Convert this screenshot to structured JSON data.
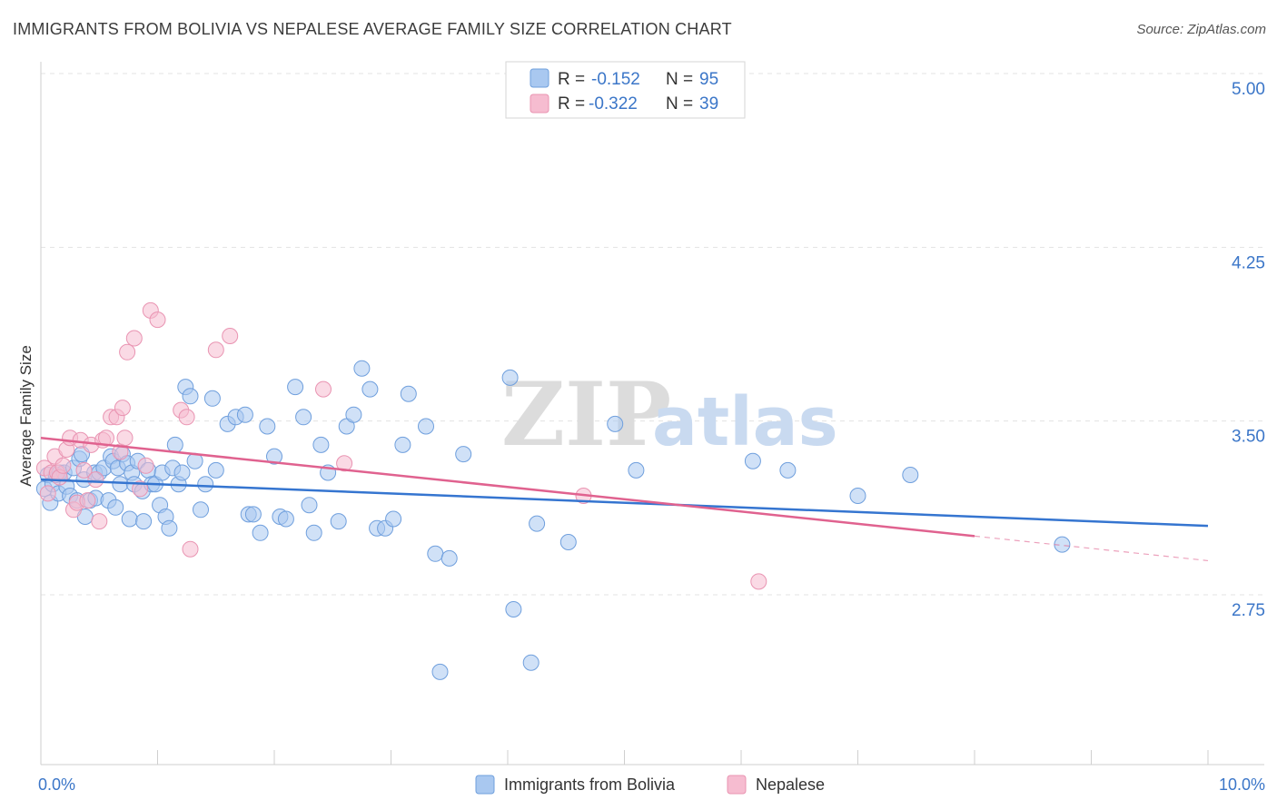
{
  "title": "IMMIGRANTS FROM BOLIVIA VS NEPALESE AVERAGE FAMILY SIZE CORRELATION CHART",
  "source": "Source: ZipAtlas.com",
  "watermark": {
    "zip": "ZIP",
    "atlas": "atlas"
  },
  "colors": {
    "bolivia_fill": "#a9c8f0",
    "bolivia_stroke": "#6f9fdd",
    "bolivia_line": "#3575d0",
    "nepalese_fill": "#f6bcd0",
    "nepalese_stroke": "#e994b2",
    "nepalese_line": "#e0628f",
    "tick_text": "#3b76c8",
    "grid": "#e3e3e3"
  },
  "legend": {
    "rows": [
      {
        "r_label": "R =",
        "r_value": "-0.152",
        "n_label": "N =",
        "n_value": "95"
      },
      {
        "r_label": "R =",
        "r_value": "-0.322",
        "n_label": "N =",
        "n_value": "39"
      }
    ]
  },
  "chart_data": {
    "type": "scatter",
    "title": "IMMIGRANTS FROM BOLIVIA VS NEPALESE AVERAGE FAMILY SIZE CORRELATION CHART",
    "xlabel": "",
    "ylabel": "Average Family Size",
    "xlim": [
      0,
      10
    ],
    "ylim": [
      2.0,
      5.1
    ],
    "x_tick_labels": [
      "0.0%",
      "10.0%"
    ],
    "y_ticks": [
      2.75,
      3.5,
      4.25,
      5.0
    ],
    "y_tick_labels": [
      "2.75",
      "3.50",
      "4.25",
      "5.00"
    ],
    "grid": true,
    "legend_position": "top-center",
    "series": [
      {
        "name": "Immigrants from Bolivia",
        "trend": {
          "x": [
            0,
            10
          ],
          "y": [
            3.31,
            3.11
          ],
          "dashed_from": null
        },
        "points": [
          [
            0.03,
            3.27
          ],
          [
            0.06,
            3.33
          ],
          [
            0.08,
            3.21
          ],
          [
            0.1,
            3.29
          ],
          [
            0.13,
            3.33
          ],
          [
            0.15,
            3.25
          ],
          [
            0.16,
            3.34
          ],
          [
            0.2,
            3.34
          ],
          [
            0.22,
            3.28
          ],
          [
            0.25,
            3.24
          ],
          [
            0.28,
            3.36
          ],
          [
            0.31,
            3.22
          ],
          [
            0.33,
            3.4
          ],
          [
            0.35,
            3.42
          ],
          [
            0.37,
            3.31
          ],
          [
            0.38,
            3.15
          ],
          [
            0.42,
            3.22
          ],
          [
            0.46,
            3.34
          ],
          [
            0.47,
            3.23
          ],
          [
            0.5,
            3.34
          ],
          [
            0.54,
            3.36
          ],
          [
            0.58,
            3.22
          ],
          [
            0.6,
            3.41
          ],
          [
            0.62,
            3.39
          ],
          [
            0.64,
            3.19
          ],
          [
            0.66,
            3.36
          ],
          [
            0.68,
            3.29
          ],
          [
            0.7,
            3.42
          ],
          [
            0.74,
            3.38
          ],
          [
            0.76,
            3.14
          ],
          [
            0.78,
            3.34
          ],
          [
            0.8,
            3.29
          ],
          [
            0.83,
            3.39
          ],
          [
            0.87,
            3.26
          ],
          [
            0.88,
            3.13
          ],
          [
            0.92,
            3.35
          ],
          [
            0.95,
            3.29
          ],
          [
            0.98,
            3.29
          ],
          [
            1.02,
            3.2
          ],
          [
            1.04,
            3.34
          ],
          [
            1.07,
            3.15
          ],
          [
            1.1,
            3.1
          ],
          [
            1.13,
            3.36
          ],
          [
            1.15,
            3.46
          ],
          [
            1.18,
            3.29
          ],
          [
            1.21,
            3.34
          ],
          [
            1.24,
            3.71
          ],
          [
            1.28,
            3.67
          ],
          [
            1.32,
            3.39
          ],
          [
            1.37,
            3.18
          ],
          [
            1.41,
            3.29
          ],
          [
            1.47,
            3.66
          ],
          [
            1.5,
            3.35
          ],
          [
            1.6,
            3.55
          ],
          [
            1.67,
            3.58
          ],
          [
            1.75,
            3.59
          ],
          [
            1.78,
            3.16
          ],
          [
            1.82,
            3.16
          ],
          [
            1.88,
            3.08
          ],
          [
            1.94,
            3.54
          ],
          [
            2.0,
            3.41
          ],
          [
            2.05,
            3.15
          ],
          [
            2.1,
            3.14
          ],
          [
            2.18,
            3.71
          ],
          [
            2.25,
            3.58
          ],
          [
            2.3,
            3.2
          ],
          [
            2.34,
            3.08
          ],
          [
            2.4,
            3.46
          ],
          [
            2.46,
            3.34
          ],
          [
            2.55,
            3.13
          ],
          [
            2.62,
            3.54
          ],
          [
            2.68,
            3.59
          ],
          [
            2.75,
            3.79
          ],
          [
            2.82,
            3.7
          ],
          [
            2.88,
            3.1
          ],
          [
            2.95,
            3.1
          ],
          [
            3.02,
            3.14
          ],
          [
            3.1,
            3.46
          ],
          [
            3.15,
            3.68
          ],
          [
            3.3,
            3.54
          ],
          [
            3.38,
            2.99
          ],
          [
            3.42,
            2.48
          ],
          [
            3.5,
            2.97
          ],
          [
            3.62,
            3.42
          ],
          [
            4.02,
            3.75
          ],
          [
            4.05,
            2.75
          ],
          [
            4.2,
            2.52
          ],
          [
            4.25,
            3.12
          ],
          [
            4.52,
            3.04
          ],
          [
            4.92,
            3.55
          ],
          [
            5.1,
            3.35
          ],
          [
            6.1,
            3.39
          ],
          [
            6.4,
            3.35
          ],
          [
            7.0,
            3.24
          ],
          [
            7.45,
            3.33
          ],
          [
            8.75,
            3.03
          ]
        ]
      },
      {
        "name": "Nepalese",
        "trend": {
          "x": [
            0,
            10
          ],
          "y": [
            3.49,
            2.96
          ],
          "dashed_from": 8.0
        },
        "points": [
          [
            0.03,
            3.36
          ],
          [
            0.06,
            3.25
          ],
          [
            0.09,
            3.34
          ],
          [
            0.12,
            3.41
          ],
          [
            0.14,
            3.34
          ],
          [
            0.16,
            3.32
          ],
          [
            0.19,
            3.37
          ],
          [
            0.22,
            3.44
          ],
          [
            0.25,
            3.49
          ],
          [
            0.28,
            3.18
          ],
          [
            0.31,
            3.21
          ],
          [
            0.34,
            3.48
          ],
          [
            0.37,
            3.35
          ],
          [
            0.4,
            3.22
          ],
          [
            0.43,
            3.46
          ],
          [
            0.47,
            3.31
          ],
          [
            0.5,
            3.13
          ],
          [
            0.53,
            3.48
          ],
          [
            0.56,
            3.49
          ],
          [
            0.6,
            3.58
          ],
          [
            0.65,
            3.58
          ],
          [
            0.68,
            3.43
          ],
          [
            0.7,
            3.62
          ],
          [
            0.72,
            3.49
          ],
          [
            0.74,
            3.86
          ],
          [
            0.8,
            3.92
          ],
          [
            0.85,
            3.27
          ],
          [
            0.9,
            3.37
          ],
          [
            0.94,
            4.04
          ],
          [
            1.0,
            4.0
          ],
          [
            1.2,
            3.61
          ],
          [
            1.25,
            3.58
          ],
          [
            1.28,
            3.01
          ],
          [
            1.5,
            3.87
          ],
          [
            1.62,
            3.93
          ],
          [
            2.42,
            3.7
          ],
          [
            2.6,
            3.38
          ],
          [
            4.65,
            3.24
          ],
          [
            6.15,
            2.87
          ]
        ]
      }
    ]
  },
  "bottom_legend": [
    "Immigrants from Bolivia",
    "Nepalese"
  ]
}
